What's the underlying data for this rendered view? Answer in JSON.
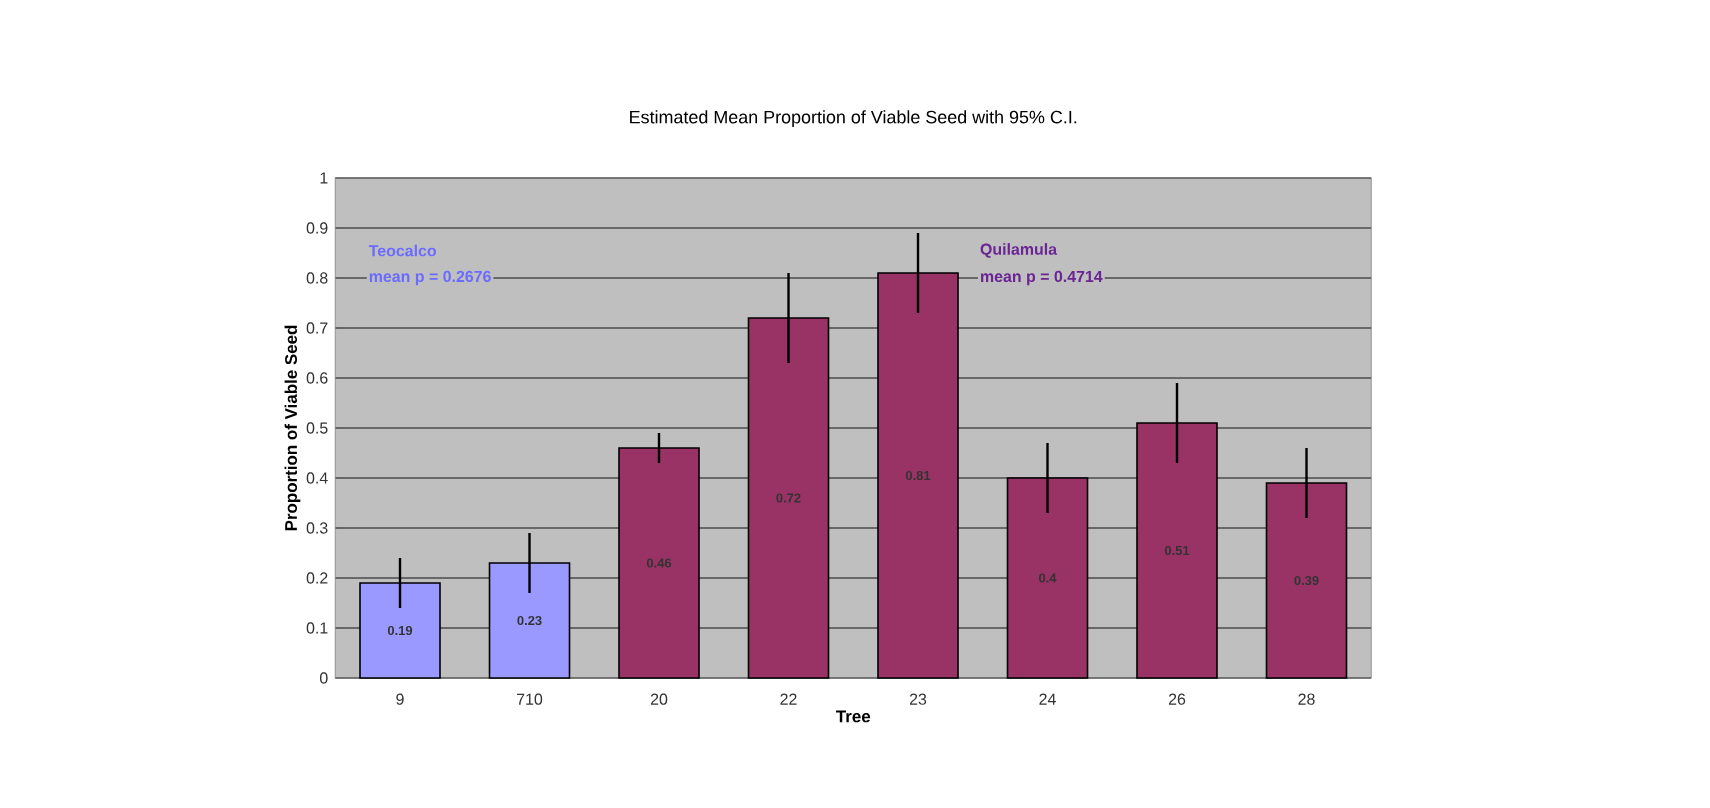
{
  "chart_data": {
    "type": "bar",
    "title": "Estimated Mean Proportion of Viable Seed with 95% C.I.",
    "xlabel": "Tree",
    "ylabel": "Proportion of Viable Seed",
    "categories": [
      "9",
      "710",
      "20",
      "22",
      "23",
      "24",
      "26",
      "28"
    ],
    "values": [
      0.19,
      0.23,
      0.46,
      0.72,
      0.81,
      0.4,
      0.51,
      0.39
    ],
    "errors": [
      0.05,
      0.06,
      0.03,
      0.09,
      0.08,
      0.07,
      0.08,
      0.07
    ],
    "colors": [
      "#9999ff",
      "#9999ff",
      "#993366",
      "#993366",
      "#993366",
      "#993366",
      "#993366",
      "#993366"
    ],
    "data_labels": true,
    "ylim": [
      0,
      1
    ],
    "yticks": [
      0,
      0.1,
      0.2,
      0.3,
      0.4,
      0.5,
      0.6,
      0.7,
      0.8,
      0.9,
      1
    ],
    "grid": "y",
    "annotations": [
      "Teocalco",
      "mean p = 0.2676",
      "Quilamula",
      "mean p = 0.4714"
    ]
  }
}
